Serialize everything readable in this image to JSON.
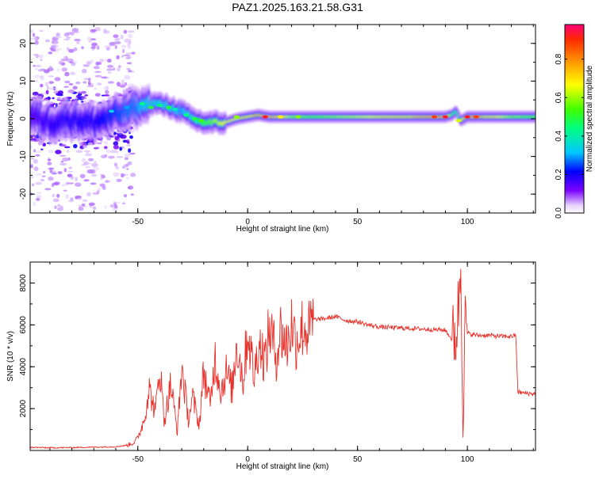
{
  "page_title": "PAZ1.2025.163.21.58.G31",
  "colors": {
    "snr_line": "#e8302a",
    "frame": "#000000",
    "spectrum_background": "#ffffff"
  },
  "chart_data": [
    {
      "type": "heatmap",
      "name": "spectrogram",
      "xlabel": "Height of straight line (km)",
      "ylabel": "Frequency (Hz)",
      "xlim": [
        -99,
        131
      ],
      "ylim": [
        -25,
        25
      ],
      "x_ticks": [
        -50,
        0,
        50,
        100
      ],
      "y_ticks": [
        -20,
        -10,
        0,
        10,
        20
      ],
      "grid": false,
      "colorbar": {
        "label": "Normalized spectral amplitude",
        "range": [
          0,
          0.98
        ],
        "ticks": [
          0.0,
          0.2,
          0.4,
          0.6,
          0.8
        ],
        "colormap": "rainbow (white-violet-blue-cyan-green-yellow-orange-red)"
      },
      "ridge": {
        "description": "dominant frequency ridge vs height",
        "x": [
          -99,
          -90,
          -80,
          -70,
          -60,
          -50,
          -45,
          -40,
          -35,
          -30,
          -25,
          -20,
          -15,
          -10,
          -5,
          0,
          5,
          10,
          20,
          30,
          40,
          50,
          60,
          70,
          80,
          90,
          93,
          95,
          97,
          100,
          110,
          120,
          131
        ],
        "freq": [
          1,
          -1,
          0,
          -1,
          1,
          3,
          4,
          4,
          3,
          2,
          0,
          -1,
          -1,
          -1,
          0,
          0.5,
          1,
          0.5,
          0.5,
          0.5,
          0.5,
          0.5,
          0.5,
          0.5,
          0.5,
          0.5,
          1,
          2,
          -0.5,
          0.5,
          0.5,
          0.5,
          0.5
        ],
        "amplitude": [
          0.15,
          0.18,
          0.2,
          0.2,
          0.25,
          0.3,
          0.35,
          0.35,
          0.35,
          0.3,
          0.4,
          0.5,
          0.6,
          0.7,
          0.7,
          0.75,
          0.85,
          0.9,
          0.6,
          0.55,
          0.6,
          0.65,
          0.7,
          0.75,
          0.85,
          0.9,
          0.5,
          0.4,
          0.6,
          0.95,
          0.75,
          0.6,
          0.55
        ]
      }
    },
    {
      "type": "line",
      "name": "snr",
      "xlabel": "Height of straight line (km)",
      "ylabel": "SNR (10 * v/v)",
      "xlim": [
        -99,
        131
      ],
      "ylim": [
        0,
        9000
      ],
      "x_ticks": [
        -50,
        0,
        50,
        100
      ],
      "y_ticks": [
        2000,
        4000,
        6000,
        8000
      ],
      "grid": false,
      "series": [
        {
          "x": [
            -99,
            -90,
            -80,
            -70,
            -60,
            -55,
            -52,
            -50,
            -47,
            -45,
            -42,
            -40,
            -38,
            -35,
            -32,
            -30,
            -27,
            -25,
            -22,
            -20,
            -17,
            -15,
            -12,
            -10,
            -7,
            -5,
            -2,
            0,
            3,
            5,
            8,
            10,
            13,
            15,
            18,
            20,
            22,
            25,
            28,
            30,
            35,
            40,
            45,
            50,
            55,
            60,
            70,
            80,
            90,
            93,
            95,
            96,
            97,
            98,
            99,
            100,
            102,
            105,
            110,
            115,
            120,
            122,
            123,
            125,
            131
          ],
          "y": [
            150,
            130,
            140,
            160,
            180,
            250,
            350,
            600,
            1500,
            3000,
            1800,
            4100,
            1400,
            3200,
            900,
            4000,
            1500,
            2500,
            1200,
            3800,
            2100,
            4500,
            2800,
            3800,
            2900,
            5200,
            3300,
            5800,
            3500,
            5200,
            4300,
            5900,
            4500,
            5700,
            5000,
            6100,
            5200,
            5900,
            5700,
            6250,
            6300,
            6400,
            6200,
            6150,
            6000,
            5900,
            5850,
            5800,
            5750,
            5300,
            5600,
            7000,
            8900,
            2100,
            6000,
            5600,
            5550,
            5500,
            5500,
            5450,
            5450,
            5500,
            2800,
            2750,
            2700
          ]
        }
      ]
    }
  ]
}
